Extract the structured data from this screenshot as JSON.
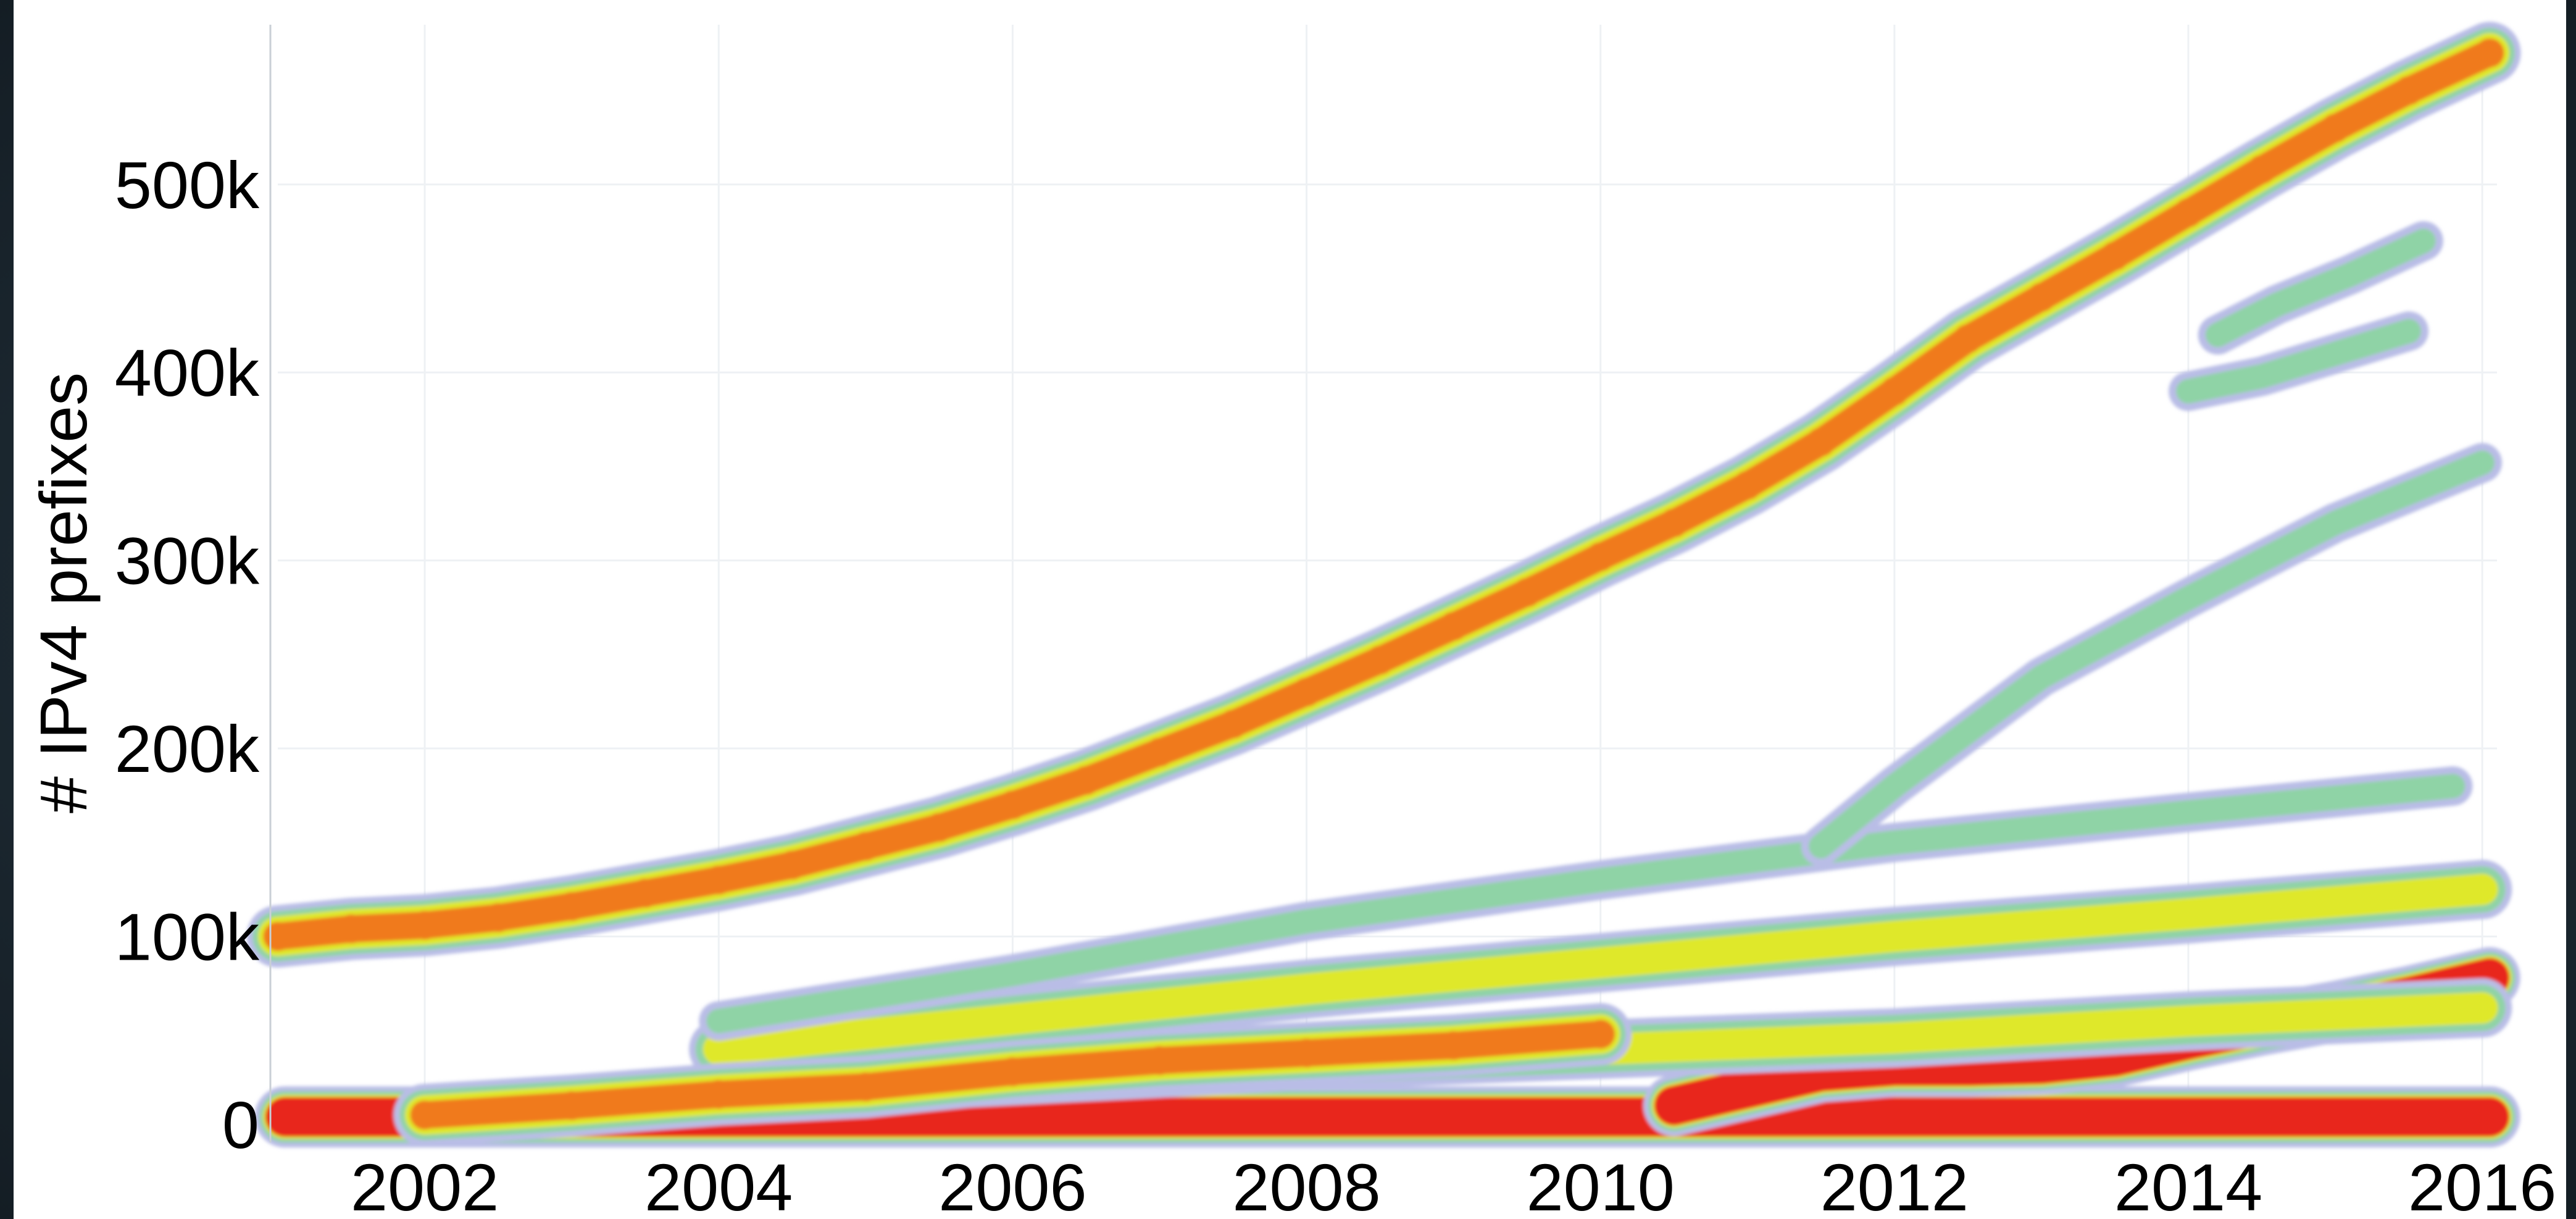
{
  "chart_data": {
    "type": "scatter",
    "title": "",
    "xlabel": "",
    "ylabel": "# IPv4 prefixes",
    "xlim": [
      2001.0,
      2016.1
    ],
    "ylim": [
      -3000,
      585000
    ],
    "grid": true,
    "legend": "none",
    "x_ticks": [
      {
        "value": 2002,
        "label": "2002"
      },
      {
        "value": 2004,
        "label": "2004"
      },
      {
        "value": 2006,
        "label": "2006"
      },
      {
        "value": 2008,
        "label": "2008"
      },
      {
        "value": 2010,
        "label": "2010"
      },
      {
        "value": 2012,
        "label": "2012"
      },
      {
        "value": 2014,
        "label": "2014"
      },
      {
        "value": 2016,
        "label": "2016"
      }
    ],
    "y_ticks": [
      {
        "value": 0,
        "label": "0"
      },
      {
        "value": 100000,
        "label": "100k"
      },
      {
        "value": 200000,
        "label": "200k"
      },
      {
        "value": 300000,
        "label": "300k"
      },
      {
        "value": 400000,
        "label": "400k"
      },
      {
        "value": 500000,
        "label": "500k"
      }
    ],
    "density_colors": {
      "low": "#b9bde6",
      "low_mid": "#8fd3a6",
      "mid": "#dfe82a",
      "high": "#f07a1c",
      "max": "#e8271e"
    },
    "series": [
      {
        "density": "max",
        "x": [
          2001.05,
          2001.5,
          2002,
          2003,
          2004,
          2005,
          2006,
          2007,
          2008,
          2009,
          2010,
          2011,
          2012,
          2013,
          2014,
          2015,
          2016.05
        ],
        "y": [
          4000,
          4000,
          4000,
          4000,
          4000,
          4000,
          4000,
          4000,
          4000,
          4000,
          4000,
          4000,
          4000,
          4000,
          4000,
          4000,
          4000
        ]
      },
      {
        "density": "high",
        "x": [
          2001.0,
          2001.5,
          2002,
          2002.5,
          2003,
          2003.5,
          2004,
          2004.5,
          2005,
          2005.5,
          2006,
          2006.5,
          2007,
          2007.5,
          2008,
          2008.5,
          2009,
          2009.5,
          2010,
          2010.5,
          2011,
          2011.5,
          2012,
          2012.5,
          2013,
          2013.5,
          2014,
          2014.5,
          2015,
          2015.5,
          2016.05
        ],
        "y": [
          100000,
          104000,
          106000,
          110000,
          116000,
          123000,
          130000,
          138000,
          148000,
          158000,
          170000,
          183000,
          198000,
          213000,
          230000,
          247000,
          265000,
          283000,
          302000,
          320000,
          340000,
          363000,
          390000,
          418000,
          440000,
          462000,
          485000,
          508000,
          530000,
          550000,
          570000
        ]
      },
      {
        "density": "max",
        "x": [
          2010.5,
          2011,
          2011.5,
          2012,
          2012.5,
          2013,
          2013.5,
          2014,
          2014.5,
          2015,
          2015.5,
          2016.05
        ],
        "y": [
          10000,
          19000,
          28000,
          31000,
          31000,
          32000,
          36000,
          45000,
          53000,
          60000,
          68000,
          78000
        ]
      },
      {
        "density": "mid",
        "x": [
          2004,
          2006,
          2008,
          2010,
          2012,
          2014,
          2016
        ],
        "y": [
          18000,
          26000,
          34000,
          40000,
          46000,
          55000,
          62000
        ]
      },
      {
        "density": "mid",
        "x": [
          2004,
          2006,
          2008,
          2010,
          2012,
          2014,
          2016
        ],
        "y": [
          40000,
          56000,
          72000,
          86000,
          100000,
          112000,
          125000
        ]
      },
      {
        "density": "low_mid",
        "x": [
          2004,
          2006,
          2008,
          2010,
          2012,
          2014,
          2015.8
        ],
        "y": [
          55000,
          80000,
          108000,
          130000,
          150000,
          166000,
          180000
        ]
      },
      {
        "density": "low_mid",
        "x": [
          2011.5,
          2012,
          2013,
          2014,
          2015,
          2016.0
        ],
        "y": [
          148000,
          180000,
          238000,
          280000,
          320000,
          352000
        ]
      },
      {
        "density": "low_mid",
        "x": [
          2014,
          2014.5,
          2015,
          2015.5
        ],
        "y": [
          390000,
          398000,
          410000,
          422000
        ]
      },
      {
        "density": "low_mid",
        "x": [
          2014.2,
          2014.6,
          2015.1,
          2015.6
        ],
        "y": [
          420000,
          436000,
          452000,
          470000
        ]
      },
      {
        "density": "high",
        "x": [
          2002,
          2003,
          2004,
          2005,
          2006,
          2007,
          2008,
          2009,
          2010
        ],
        "y": [
          5000,
          10000,
          16000,
          20000,
          28000,
          34000,
          38000,
          42000,
          48000
        ]
      }
    ]
  }
}
